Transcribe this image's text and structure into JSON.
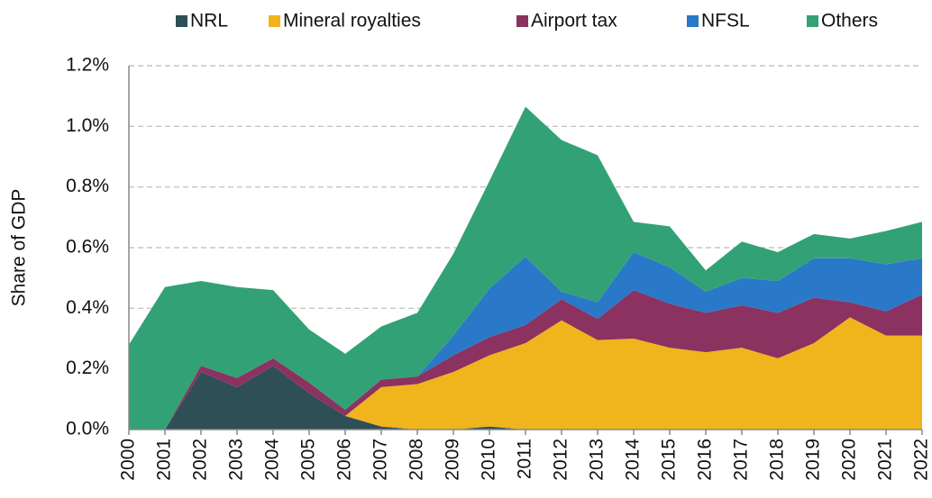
{
  "chart_data": {
    "type": "stacked_area",
    "y_label": "Share of GDP",
    "categories": [
      "2000",
      "2001",
      "2002",
      "2003",
      "2004",
      "2005",
      "2006",
      "2007",
      "2008",
      "2009",
      "2010",
      "2011",
      "2012",
      "2013",
      "2014",
      "2015",
      "2016",
      "2017",
      "2018",
      "2019",
      "2020",
      "2021",
      "2022"
    ],
    "series": [
      {
        "name": "NRL",
        "color": "#2f4f57",
        "values": [
          0,
          0,
          0.19,
          0.14,
          0.21,
          0.12,
          0.045,
          0.01,
          0,
          0,
          0.01,
          0,
          0,
          0,
          0,
          0,
          0,
          0,
          0,
          0,
          0,
          0,
          0
        ]
      },
      {
        "name": "Mineral royalties",
        "color": "#f0b41c",
        "values": [
          0,
          0,
          0,
          0,
          0,
          0,
          0,
          0.13,
          0.15,
          0.19,
          0.235,
          0.285,
          0.36,
          0.295,
          0.3,
          0.27,
          0.255,
          0.27,
          0.235,
          0.285,
          0.37,
          0.31,
          0.31
        ]
      },
      {
        "name": "Airport tax",
        "color": "#8b3260",
        "values": [
          0,
          0,
          0.02,
          0.03,
          0.025,
          0.035,
          0.02,
          0.025,
          0.025,
          0.055,
          0.06,
          0.06,
          0.07,
          0.07,
          0.16,
          0.145,
          0.13,
          0.14,
          0.15,
          0.15,
          0.05,
          0.08,
          0.135
        ]
      },
      {
        "name": "NFSL",
        "color": "#2a78c8",
        "values": [
          0,
          0,
          0,
          0,
          0,
          0,
          0,
          0,
          0,
          0.065,
          0.16,
          0.225,
          0.025,
          0.055,
          0.125,
          0.12,
          0.07,
          0.09,
          0.105,
          0.13,
          0.145,
          0.155,
          0.12
        ]
      },
      {
        "name": "Others",
        "color": "#33a176",
        "values": [
          0.28,
          0.47,
          0.28,
          0.3,
          0.225,
          0.175,
          0.185,
          0.175,
          0.21,
          0.27,
          0.355,
          0.495,
          0.5,
          0.485,
          0.1,
          0.135,
          0.07,
          0.12,
          0.095,
          0.08,
          0.065,
          0.11,
          0.12
        ]
      }
    ],
    "ylim": [
      0,
      1.2
    ],
    "yticks": [
      {
        "value": 0,
        "label": "0.0%"
      },
      {
        "value": 0.2,
        "label": "0.2%"
      },
      {
        "value": 0.4,
        "label": "0.4%"
      },
      {
        "value": 0.6,
        "label": "0.6%"
      },
      {
        "value": 0.8,
        "label": "0.8%"
      },
      {
        "value": 1.0,
        "label": "1.0%"
      },
      {
        "value": 1.2,
        "label": "1.2%"
      }
    ],
    "grid": true,
    "legend": "top"
  }
}
